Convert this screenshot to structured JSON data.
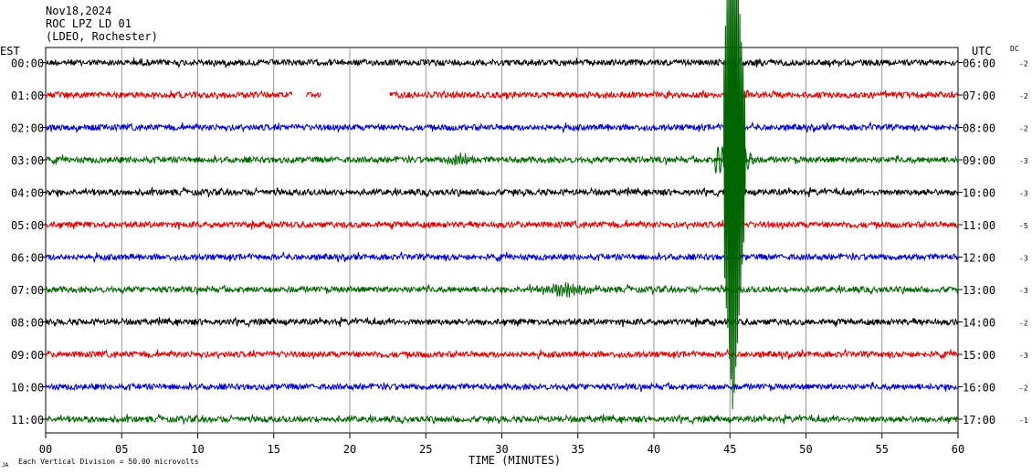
{
  "header": {
    "date": "Nov18,2024",
    "station": "ROC LPZ LD 01",
    "network": "(LDEO, Rochester)"
  },
  "labels": {
    "left_timezone": "EST",
    "right_timezone": "UTC",
    "dc_header": "DC",
    "scale_note": "Each Vertical Division =   50.00 microvolts",
    "corner_mark": "JA"
  },
  "chart_data": {
    "type": "line",
    "xlabel": "TIME (MINUTES)",
    "xlim": [
      0,
      60
    ],
    "x_ticks": [
      "00",
      "05",
      "10",
      "15",
      "20",
      "25",
      "30",
      "35",
      "40",
      "45",
      "50",
      "55",
      "60"
    ],
    "grid": true,
    "trace_colors": [
      "#000000",
      "#e00000",
      "#0000cc",
      "#006400"
    ],
    "rows": [
      {
        "est": "00:00",
        "utc": "06:00",
        "dc": "-2"
      },
      {
        "est": "01:00",
        "utc": "07:00",
        "dc": "-2"
      },
      {
        "est": "02:00",
        "utc": "08:00",
        "dc": "-2"
      },
      {
        "est": "03:00",
        "utc": "09:00",
        "dc": "-3"
      },
      {
        "est": "04:00",
        "utc": "10:00",
        "dc": "-3"
      },
      {
        "est": "05:00",
        "utc": "11:00",
        "dc": "-5"
      },
      {
        "est": "06:00",
        "utc": "12:00",
        "dc": "-3"
      },
      {
        "est": "07:00",
        "utc": "13:00",
        "dc": "-3"
      },
      {
        "est": "08:00",
        "utc": "14:00",
        "dc": "-2"
      },
      {
        "est": "09:00",
        "utc": "15:00",
        "dc": "-3"
      },
      {
        "est": "10:00",
        "utc": "16:00",
        "dc": "-2"
      },
      {
        "est": "11:00",
        "utc": "17:00",
        "dc": "-1"
      }
    ],
    "gaps": [
      {
        "row": 1,
        "from_min": 16.2,
        "to_min": 17.1
      },
      {
        "row": 1,
        "from_min": 18.1,
        "to_min": 22.6
      }
    ],
    "events": [
      {
        "row": 3,
        "type": "large",
        "start_min": 44.0,
        "end_min": 46.8
      },
      {
        "row": 7,
        "type": "small",
        "start_min": 31.0,
        "end_min": 37.5
      },
      {
        "row": 3,
        "type": "small",
        "start_min": 26.0,
        "end_min": 28.5
      }
    ]
  }
}
